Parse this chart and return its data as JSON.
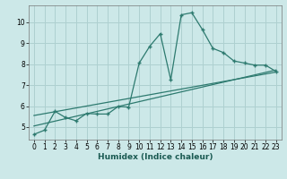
{
  "xlabel": "Humidex (Indice chaleur)",
  "background_color": "#cce8e8",
  "grid_color": "#aed0d0",
  "line_color": "#2d7a6f",
  "xlim": [
    -0.5,
    23.5
  ],
  "ylim": [
    4.4,
    10.8
  ],
  "xticks": [
    0,
    1,
    2,
    3,
    4,
    5,
    6,
    7,
    8,
    9,
    10,
    11,
    12,
    13,
    14,
    15,
    16,
    17,
    18,
    19,
    20,
    21,
    22,
    23
  ],
  "yticks": [
    5,
    6,
    7,
    8,
    9,
    10
  ],
  "main_x": [
    0,
    1,
    2,
    3,
    4,
    5,
    6,
    7,
    8,
    9,
    10,
    11,
    12,
    13,
    14,
    15,
    16,
    17,
    18,
    19,
    20,
    21,
    22,
    23
  ],
  "main_y": [
    4.65,
    4.85,
    5.75,
    5.45,
    5.3,
    5.65,
    5.62,
    5.62,
    5.98,
    5.95,
    8.05,
    8.85,
    9.45,
    7.25,
    10.35,
    10.45,
    9.65,
    8.75,
    8.55,
    8.15,
    8.05,
    7.95,
    7.95,
    7.65
  ],
  "line2_x": [
    0,
    23
  ],
  "line2_y": [
    5.05,
    7.72
  ],
  "line3_x": [
    0,
    23
  ],
  "line3_y": [
    5.55,
    7.62
  ],
  "tick_fontsize": 5.5,
  "xlabel_fontsize": 6.5
}
